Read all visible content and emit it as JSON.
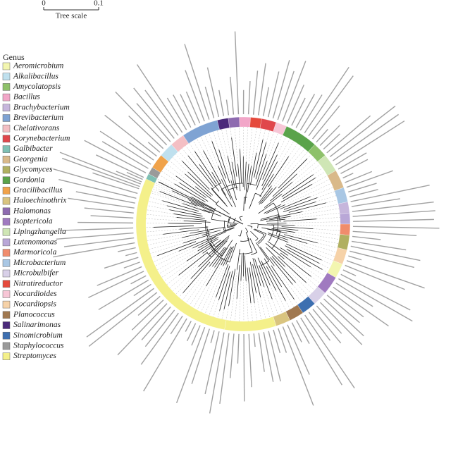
{
  "scale": {
    "zero": "0",
    "end": "0.1",
    "title": "Tree scale"
  },
  "legend": {
    "title": "Genus",
    "items": [
      {
        "name": "Aeromicrobium",
        "color": "#f3f6b0"
      },
      {
        "name": "Alkalibacillus",
        "color": "#bfe0ee"
      },
      {
        "name": "Amycolatopsis",
        "color": "#8ec16a"
      },
      {
        "name": "Bacillus",
        "color": "#f2a6c8"
      },
      {
        "name": "Brachybacterium",
        "color": "#c6b6dc"
      },
      {
        "name": "Brevibacterium",
        "color": "#7fa3d3"
      },
      {
        "name": "Chelativorans",
        "color": "#f4bfc4"
      },
      {
        "name": "Corynebacterium",
        "color": "#e0474c"
      },
      {
        "name": "Galbibacter",
        "color": "#7ec0b4"
      },
      {
        "name": "Georgenia",
        "color": "#d9b98a"
      },
      {
        "name": "Glycomyces",
        "color": "#b0b061"
      },
      {
        "name": "Gordonia",
        "color": "#5aa34a"
      },
      {
        "name": "Gracilibacillus",
        "color": "#f0a24a"
      },
      {
        "name": "Haloechinothrix",
        "color": "#d9c47f"
      },
      {
        "name": "Halomonas",
        "color": "#8e6bb0"
      },
      {
        "name": "Isoptericola",
        "color": "#a07ac0"
      },
      {
        "name": "Lipingzhangella",
        "color": "#cfe6b5"
      },
      {
        "name": "Lutenomonas",
        "color": "#b9a7d7"
      },
      {
        "name": "Marmoricola",
        "color": "#f08c6c"
      },
      {
        "name": "Microbacterium",
        "color": "#a9c7e4"
      },
      {
        "name": "Microbulbifer",
        "color": "#d8d0e8"
      },
      {
        "name": "Nitratireductor",
        "color": "#e54a3c"
      },
      {
        "name": "Nocardioides",
        "color": "#f7c6d6"
      },
      {
        "name": "Nocardiopsis",
        "color": "#f6d2a8"
      },
      {
        "name": "Planococcus",
        "color": "#a07850"
      },
      {
        "name": "Salinarimonas",
        "color": "#4b2a7a"
      },
      {
        "name": "Sinomicrobium",
        "color": "#3d6fb0"
      },
      {
        "name": "Staphylococcus",
        "color": "#9a9a9a"
      },
      {
        "name": "Streptomyces",
        "color": "#f4f08a"
      }
    ]
  }
}
